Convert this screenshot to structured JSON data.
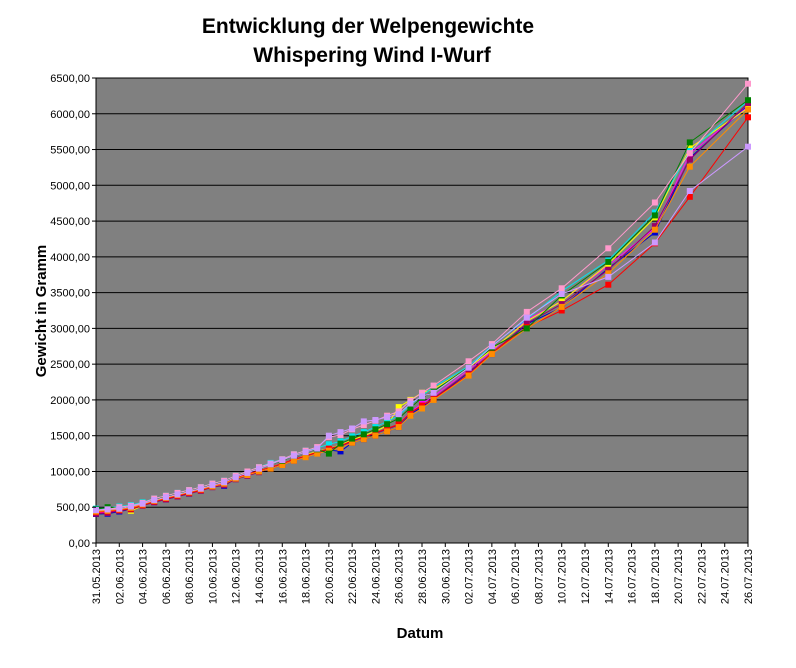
{
  "colors": {
    "plot_background": "#808080",
    "gridline": "#000000",
    "page_background": "#ffffff"
  },
  "chart_data": {
    "type": "line",
    "title": [
      "Entwicklung der Welpengewichte",
      "Whispering Wind I-Wurf"
    ],
    "xlabel": "Datum",
    "ylabel": "Gewicht in Gramm",
    "x_start": "2013-05-31",
    "x_end": "2013-07-26",
    "x_ticks": [
      "31.05.2013",
      "02.06.2013",
      "04.06.2013",
      "06.06.2013",
      "08.06.2013",
      "10.06.2013",
      "12.06.2013",
      "14.06.2013",
      "16.06.2013",
      "18.06.2013",
      "20.06.2013",
      "22.06.2013",
      "24.06.2013",
      "26.06.2013",
      "28.06.2013",
      "30.06.2013",
      "02.07.2013",
      "04.07.2013",
      "06.07.2013",
      "08.07.2013",
      "10.07.2013",
      "12.07.2013",
      "14.07.2013",
      "16.07.2013",
      "18.07.2013",
      "20.07.2013",
      "22.07.2013",
      "24.07.2013",
      "26.07.2013"
    ],
    "ylim": [
      0,
      6500
    ],
    "y_ticks": [
      "0,00",
      "500,00",
      "1000,00",
      "1500,00",
      "2000,00",
      "2500,00",
      "3000,00",
      "3500,00",
      "4000,00",
      "4500,00",
      "5000,00",
      "5500,00",
      "6000,00",
      "6500,00"
    ],
    "grid": "horizontal",
    "legend": "none",
    "x": [
      "2013-05-31",
      "2013-06-01",
      "2013-06-02",
      "2013-06-03",
      "2013-06-04",
      "2013-06-05",
      "2013-06-06",
      "2013-06-07",
      "2013-06-08",
      "2013-06-09",
      "2013-06-10",
      "2013-06-11",
      "2013-06-12",
      "2013-06-13",
      "2013-06-14",
      "2013-06-15",
      "2013-06-16",
      "2013-06-17",
      "2013-06-18",
      "2013-06-19",
      "2013-06-20",
      "2013-06-21",
      "2013-06-22",
      "2013-06-23",
      "2013-06-24",
      "2013-06-25",
      "2013-06-26",
      "2013-06-27",
      "2013-06-28",
      "2013-06-29",
      "2013-07-02",
      "2013-07-04",
      "2013-07-07",
      "2013-07-10",
      "2013-07-14",
      "2013-07-18",
      "2013-07-21",
      "2013-07-26"
    ],
    "series": [
      {
        "color": "#0000cc",
        "values": [
          405,
          410,
          440,
          470,
          530,
          570,
          610,
          650,
          690,
          740,
          790,
          800,
          900,
          950,
          1000,
          1050,
          1100,
          1180,
          1230,
          1270,
          1300,
          1280,
          1400,
          1450,
          1500,
          1560,
          1620,
          1800,
          1900,
          2010,
          2380,
          2640,
          3060,
          3290,
          3840,
          4340,
          5380,
          6120
        ]
      },
      {
        "color": "#ff00ff",
        "values": [
          420,
          430,
          460,
          480,
          540,
          600,
          640,
          680,
          720,
          760,
          810,
          840,
          920,
          960,
          1010,
          1060,
          1110,
          1170,
          1220,
          1270,
          1320,
          1360,
          1420,
          1480,
          1540,
          1600,
          1660,
          1830,
          1950,
          2050,
          2420,
          2680,
          3120,
          3380,
          3880,
          4400,
          5440,
          6100
        ]
      },
      {
        "color": "#ffff00",
        "values": [
          450,
          470,
          480,
          450,
          520,
          590,
          630,
          670,
          700,
          740,
          790,
          830,
          900,
          950,
          1010,
          1060,
          1110,
          1170,
          1230,
          1280,
          1320,
          1370,
          1440,
          1500,
          1560,
          1640,
          1900,
          2000,
          2100,
          2150,
          2450,
          2700,
          3100,
          3380,
          3900,
          4550,
          5520,
          6080
        ]
      },
      {
        "color": "#00e5ee",
        "values": [
          480,
          490,
          510,
          530,
          570,
          620,
          660,
          700,
          740,
          780,
          830,
          870,
          940,
          1000,
          1060,
          1120,
          1170,
          1240,
          1290,
          1330,
          1380,
          1420,
          1490,
          1550,
          1620,
          1700,
          1780,
          1930,
          2060,
          2180,
          2470,
          2760,
          3130,
          3520,
          3950,
          4620,
          5480,
          6180
        ]
      },
      {
        "color": "#990066",
        "values": [
          410,
          420,
          450,
          470,
          520,
          570,
          610,
          650,
          690,
          730,
          780,
          810,
          890,
          940,
          990,
          1040,
          1090,
          1150,
          1210,
          1260,
          1310,
          1350,
          1420,
          1480,
          1530,
          1590,
          1650,
          1820,
          1920,
          2020,
          2390,
          2650,
          3070,
          3340,
          3820,
          4430,
          5360,
          6150
        ]
      },
      {
        "color": "#ff0000",
        "values": [
          430,
          440,
          460,
          480,
          530,
          580,
          620,
          660,
          700,
          740,
          790,
          830,
          910,
          960,
          1010,
          1060,
          1110,
          1170,
          1220,
          1270,
          1320,
          1360,
          1430,
          1480,
          1540,
          1600,
          1660,
          1820,
          1920,
          2010,
          2350,
          2660,
          3020,
          3250,
          3610,
          4190,
          4840,
          5950
        ]
      },
      {
        "color": "#ff8c00",
        "values": [
          440,
          450,
          470,
          490,
          540,
          590,
          630,
          670,
          710,
          750,
          790,
          830,
          900,
          950,
          1000,
          1040,
          1090,
          1150,
          1200,
          1250,
          1290,
          1330,
          1400,
          1450,
          1500,
          1560,
          1620,
          1780,
          1880,
          2000,
          2340,
          2640,
          3000,
          3300,
          3770,
          4380,
          5260,
          6060
        ]
      },
      {
        "color": "#008000",
        "values": [
          470,
          500,
          490,
          510,
          560,
          610,
          650,
          690,
          730,
          770,
          820,
          860,
          930,
          990,
          1050,
          1100,
          1150,
          1220,
          1270,
          1310,
          1250,
          1390,
          1460,
          1520,
          1590,
          1660,
          1740,
          1890,
          2030,
          2120,
          2460,
          2730,
          3000,
          3460,
          3930,
          4580,
          5600,
          6190
        ]
      },
      {
        "color": "#ff99cc",
        "values": [
          460,
          470,
          500,
          520,
          560,
          620,
          660,
          700,
          740,
          780,
          830,
          870,
          940,
          1000,
          1060,
          1110,
          1170,
          1240,
          1290,
          1340,
          1480,
          1510,
          1590,
          1650,
          1710,
          1780,
          1840,
          1990,
          2100,
          2200,
          2540,
          2780,
          3230,
          3560,
          4120,
          4760,
          5450,
          6420
        ]
      },
      {
        "color": "#cc99ff",
        "values": [
          460,
          470,
          480,
          510,
          550,
          600,
          640,
          680,
          720,
          760,
          810,
          850,
          920,
          980,
          1040,
          1100,
          1160,
          1220,
          1270,
          1320,
          1500,
          1550,
          1600,
          1700,
          1720,
          1760,
          1800,
          1950,
          2050,
          2100,
          2450,
          2750,
          3150,
          3480,
          3720,
          4200,
          4920,
          5540
        ]
      }
    ]
  }
}
